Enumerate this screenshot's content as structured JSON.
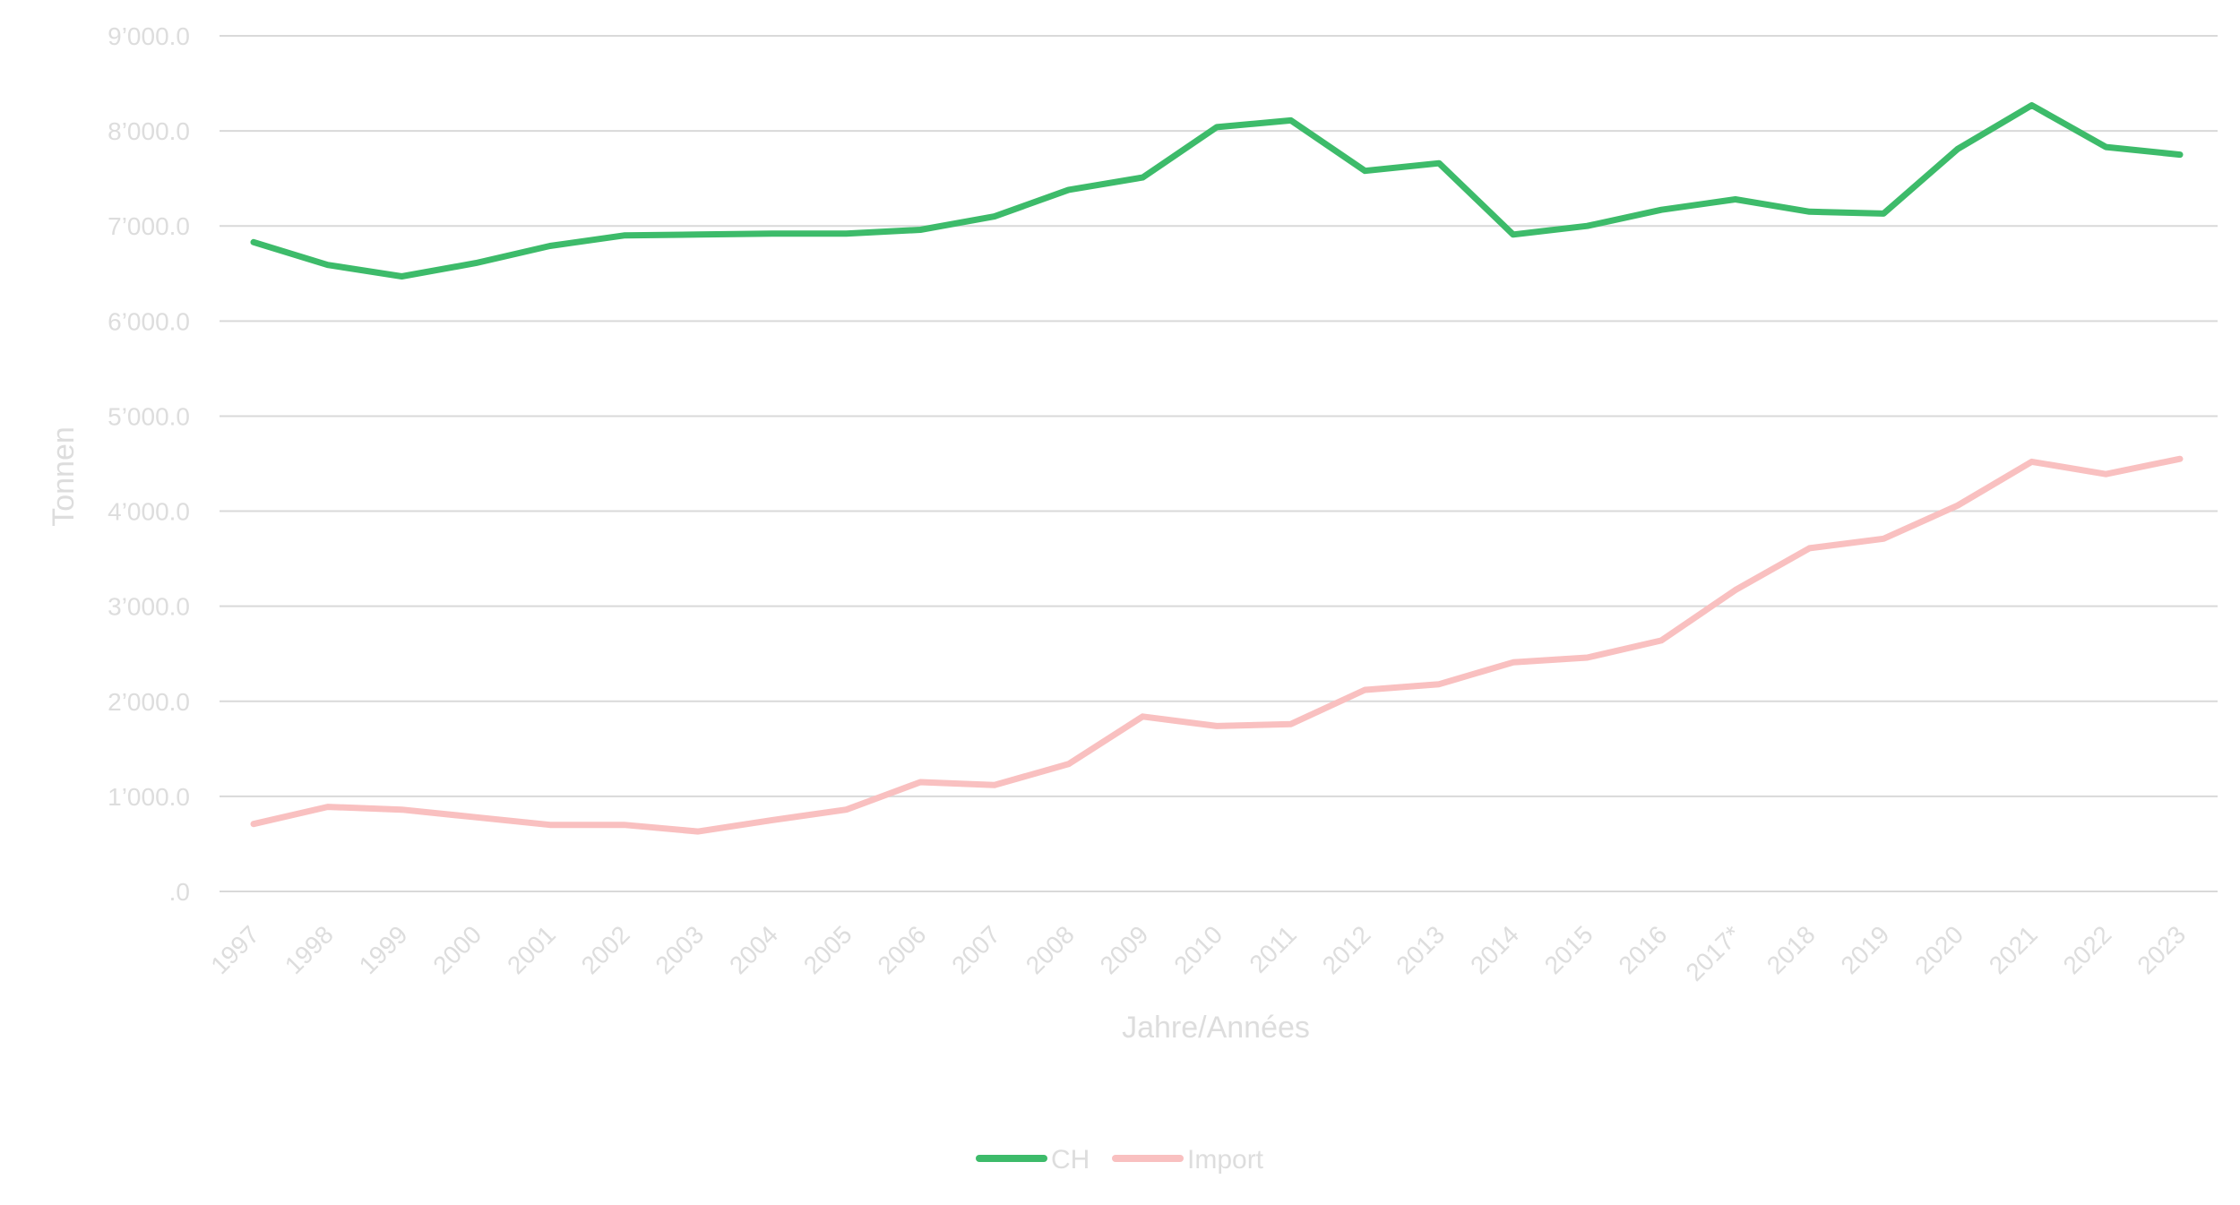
{
  "chart_data": {
    "type": "line",
    "title": "",
    "xlabel": "Jahre/Années",
    "ylabel": "Tonnen",
    "ylim": [
      0,
      9000
    ],
    "yticks": [
      {
        "value": 0,
        "label": ".0"
      },
      {
        "value": 1000,
        "label": "1’000.0"
      },
      {
        "value": 2000,
        "label": "2’000.0"
      },
      {
        "value": 3000,
        "label": "3’000.0"
      },
      {
        "value": 4000,
        "label": "4’000.0"
      },
      {
        "value": 5000,
        "label": "5’000.0"
      },
      {
        "value": 6000,
        "label": "6’000.0"
      },
      {
        "value": 7000,
        "label": "7’000.0"
      },
      {
        "value": 8000,
        "label": "8’000.0"
      },
      {
        "value": 9000,
        "label": "9’000.0"
      }
    ],
    "grid": true,
    "legend_position": "bottom",
    "categories": [
      "1997",
      "1998",
      "1999",
      "2000",
      "2001",
      "2002",
      "2003",
      "2004",
      "2005",
      "2006",
      "2007",
      "2008",
      "2009",
      "2010",
      "2011",
      "2012",
      "2013",
      "2014",
      "2015",
      "2016",
      "2017*",
      "2018",
      "2019",
      "2020",
      "2021",
      "2022",
      "2023"
    ],
    "series": [
      {
        "name": "CH",
        "color": "#3dbb6a",
        "values": [
          6830,
          6590,
          6470,
          6610,
          6790,
          6900,
          6910,
          6920,
          6920,
          6960,
          7100,
          7380,
          7510,
          8040,
          8110,
          7580,
          7660,
          6910,
          7000,
          7170,
          7280,
          7150,
          7130,
          7810,
          8270,
          7830,
          7750
        ]
      },
      {
        "name": "Import",
        "color": "#f9c0c0",
        "values": [
          710,
          890,
          860,
          780,
          700,
          700,
          630,
          750,
          860,
          1150,
          1120,
          1340,
          1840,
          1740,
          1760,
          2120,
          2180,
          2410,
          2460,
          2640,
          3170,
          3610,
          3710,
          4060,
          4520,
          4390,
          4550
        ]
      }
    ]
  }
}
